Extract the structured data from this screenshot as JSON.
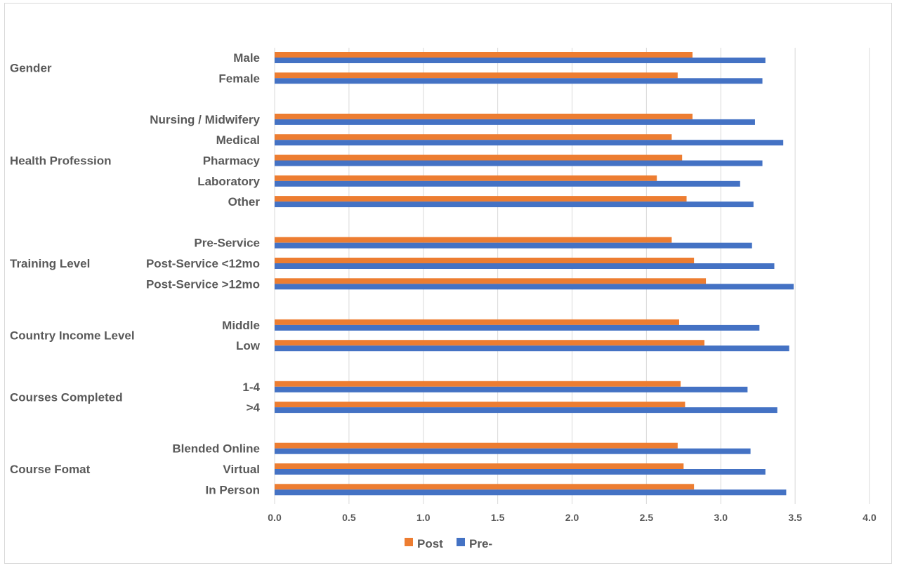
{
  "chart_data": {
    "type": "bar",
    "orientation": "horizontal",
    "title": "",
    "xlabel": "",
    "ylabel": "",
    "xlim": [
      0,
      4.0
    ],
    "xticks": [
      "0.0",
      "0.5",
      "1.0",
      "1.5",
      "2.0",
      "2.5",
      "3.0",
      "3.5",
      "4.0"
    ],
    "grid": true,
    "legend_position": "bottom",
    "colors": {
      "Post": "#ED7D31",
      "Pre-": "#4472C4"
    },
    "groups": [
      {
        "name": "Gender",
        "categories": [
          "Male",
          "Female"
        ]
      },
      {
        "name": "Health Profession",
        "categories": [
          "Nursing / Midwifery",
          "Medical",
          "Pharmacy",
          "Laboratory",
          "Other"
        ]
      },
      {
        "name": "Training Level",
        "categories": [
          "Pre-Service",
          "Post-Service <12mo",
          "Post-Service >12mo"
        ]
      },
      {
        "name": "Country Income Level",
        "categories": [
          "Middle",
          "Low"
        ]
      },
      {
        "name": "Courses Completed",
        "categories": [
          "1-4",
          ">4"
        ]
      },
      {
        "name": "Course Fomat",
        "categories": [
          "Blended Online",
          "Virtual",
          "In Person"
        ]
      }
    ],
    "categories": [
      "Male",
      "Female",
      "Nursing / Midwifery",
      "Medical",
      "Pharmacy",
      "Laboratory",
      "Other",
      "Pre-Service",
      "Post-Service <12mo",
      "Post-Service >12mo",
      "Middle",
      "Low",
      "1-4",
      ">4",
      "Blended Online",
      "Virtual",
      "In Person"
    ],
    "series": [
      {
        "name": "Post",
        "values": [
          2.81,
          2.71,
          2.81,
          2.67,
          2.74,
          2.57,
          2.77,
          2.67,
          2.82,
          2.9,
          2.72,
          2.89,
          2.73,
          2.76,
          2.71,
          2.75,
          2.82
        ]
      },
      {
        "name": "Pre-",
        "values": [
          3.3,
          3.28,
          3.23,
          3.42,
          3.28,
          3.13,
          3.22,
          3.21,
          3.36,
          3.49,
          3.26,
          3.46,
          3.18,
          3.38,
          3.2,
          3.3,
          3.44
        ]
      }
    ]
  }
}
